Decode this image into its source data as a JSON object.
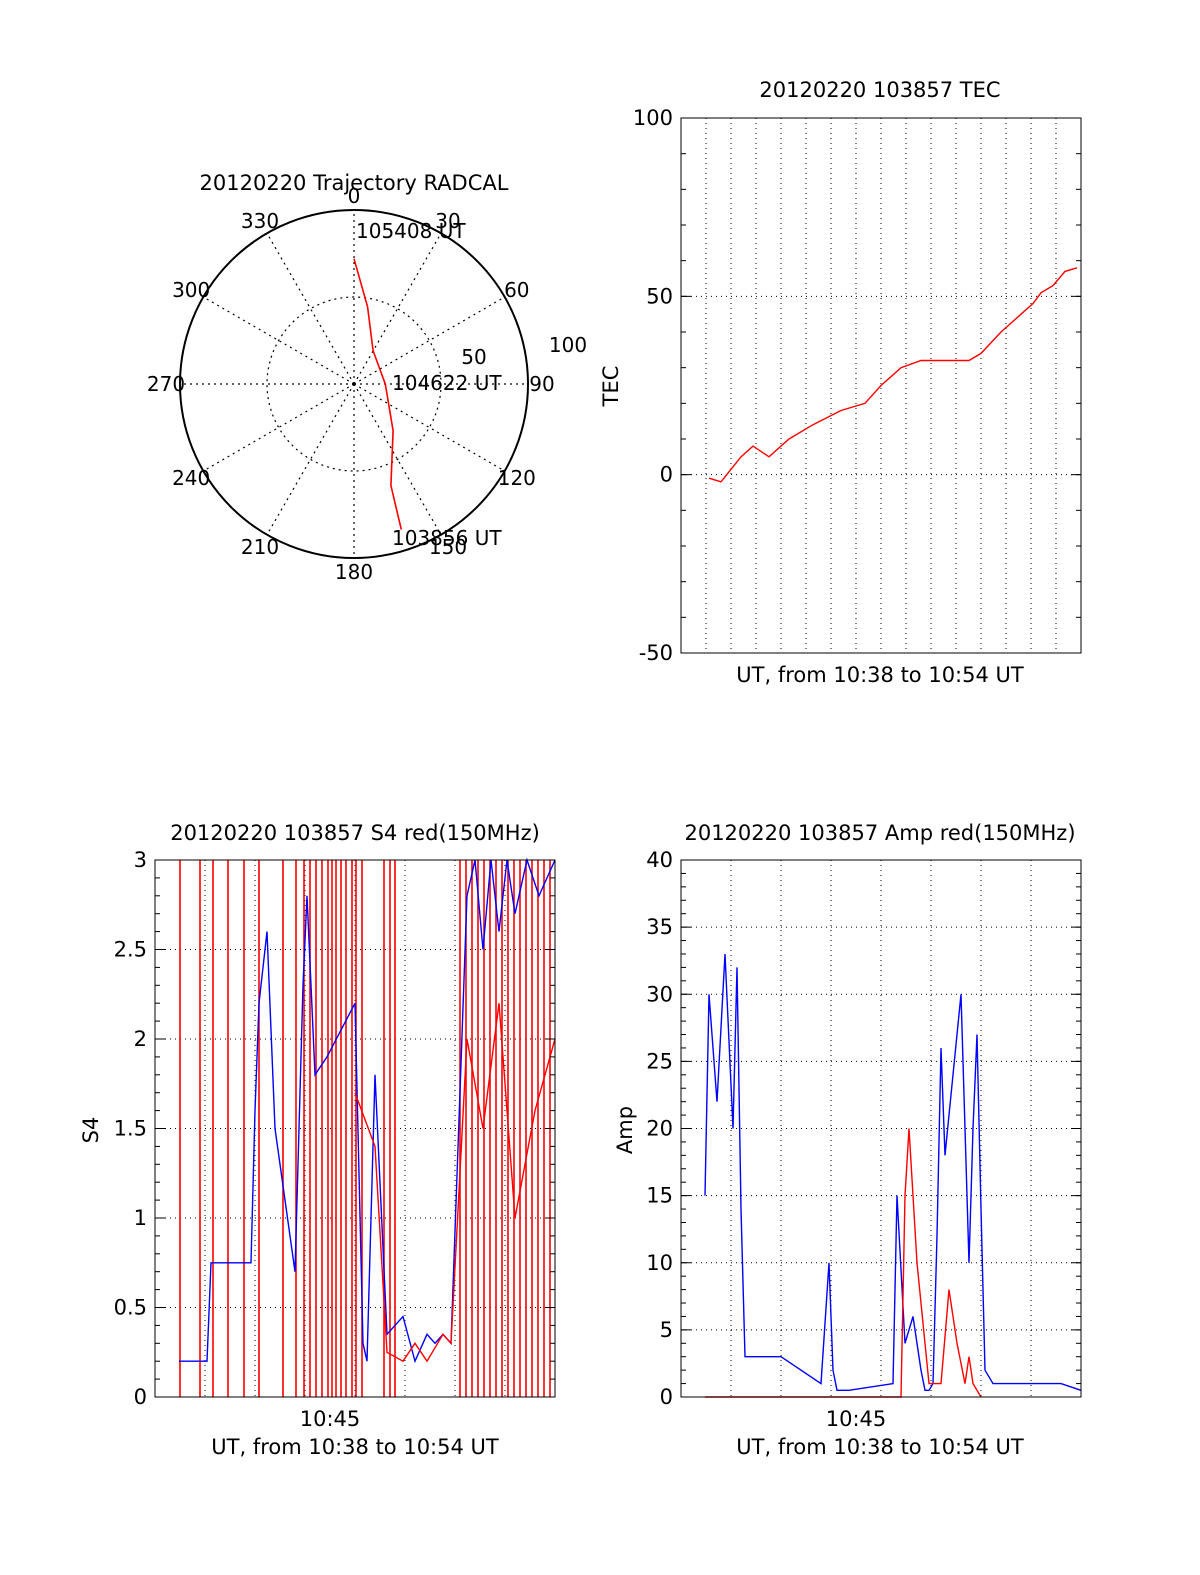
{
  "chart_data": [
    {
      "type": "polar",
      "title": "20120220 Trajectory RADCAL",
      "angle_labels": [
        "0",
        "30",
        "60",
        "90",
        "120",
        "150",
        "180",
        "210",
        "240",
        "270",
        "300",
        "330"
      ],
      "radial_labels": [
        "50",
        "100"
      ],
      "series_color": "#ff0000",
      "trajectory": [
        {
          "az": 0,
          "r": 72
        },
        {
          "az": 10,
          "r": 45
        },
        {
          "az": 30,
          "r": 22
        },
        {
          "az": 90,
          "r": 18
        },
        {
          "az": 140,
          "r": 35
        },
        {
          "az": 160,
          "r": 62
        },
        {
          "az": 162,
          "r": 88
        }
      ],
      "annotations": [
        "105408 UT",
        "104622 UT",
        "103856 UT"
      ]
    },
    {
      "type": "line",
      "title": "20120220 103857 TEC",
      "xlabel": "UT, from 10:38 to 10:54 UT",
      "ylabel": "TEC",
      "ylim": [
        -50,
        100
      ],
      "yticks": [
        "100",
        "50",
        "0",
        "-50"
      ],
      "grid": true,
      "series": [
        {
          "color": "#ff0000",
          "x": [
            0.07,
            0.1,
            0.15,
            0.18,
            0.22,
            0.27,
            0.33,
            0.4,
            0.46,
            0.5,
            0.55,
            0.6,
            0.65,
            0.68,
            0.72,
            0.75,
            0.8,
            0.85,
            0.88,
            0.9,
            0.93,
            0.96,
            0.99
          ],
          "y": [
            -1,
            -2,
            5,
            8,
            5,
            10,
            14,
            18,
            20,
            25,
            30,
            32,
            32,
            32,
            32,
            34,
            40,
            45,
            48,
            51,
            53,
            57,
            58
          ]
        }
      ]
    },
    {
      "type": "line",
      "title": "20120220 103857 S4 red(150MHz)",
      "xlabel": "UT, from 10:38 to 10:54 UT",
      "ylabel": "S4",
      "xtick_label": "10:45",
      "ylim": [
        0,
        3
      ],
      "yticks": [
        "3",
        "2.5",
        "2",
        "1.5",
        "1",
        "0.5",
        "0"
      ],
      "grid": true,
      "series": [
        {
          "color": "#0000ff",
          "x": [
            0.06,
            0.13,
            0.14,
            0.24,
            0.25,
            0.26,
            0.28,
            0.3,
            0.35,
            0.37,
            0.38,
            0.4,
            0.43,
            0.5,
            0.52,
            0.53,
            0.55,
            0.58,
            0.62,
            0.65,
            0.68,
            0.7,
            0.72,
            0.74,
            0.78,
            0.8,
            0.82,
            0.84,
            0.86,
            0.88,
            0.9,
            0.93,
            0.96,
            1.0
          ],
          "y": [
            0.2,
            0.2,
            0.75,
            0.75,
            1.6,
            2.2,
            2.6,
            1.5,
            0.7,
            2.3,
            2.8,
            1.8,
            1.9,
            2.2,
            0.3,
            0.2,
            1.8,
            0.35,
            0.45,
            0.2,
            0.35,
            0.3,
            0.35,
            0.3,
            2.8,
            3.0,
            2.5,
            3.0,
            2.6,
            3.0,
            2.7,
            3.0,
            2.8,
            3.0
          ]
        },
        {
          "color": "#ff0000",
          "x": [
            0.5,
            0.55,
            0.58,
            0.62,
            0.65,
            0.68,
            0.72,
            0.74,
            0.78,
            0.82,
            0.86,
            0.9,
            0.95,
            1.0
          ],
          "y": [
            1.7,
            1.4,
            0.25,
            0.2,
            0.3,
            0.2,
            0.35,
            0.3,
            2.0,
            1.5,
            2.2,
            1.0,
            1.6,
            2.0
          ]
        }
      ]
    },
    {
      "type": "line",
      "title": "20120220 103857 Amp red(150MHz)",
      "xlabel": "UT, from 10:38 to 10:54 UT",
      "ylabel": "Amp",
      "xtick_label": "10:45",
      "ylim": [
        0,
        40
      ],
      "yticks": [
        "40",
        "35",
        "30",
        "25",
        "20",
        "15",
        "10",
        "5",
        "0"
      ],
      "grid": true,
      "series": [
        {
          "color": "#0000ff",
          "x": [
            0.06,
            0.07,
            0.09,
            0.11,
            0.13,
            0.14,
            0.15,
            0.16,
            0.25,
            0.35,
            0.37,
            0.38,
            0.39,
            0.42,
            0.53,
            0.54,
            0.56,
            0.58,
            0.6,
            0.61,
            0.62,
            0.63,
            0.64,
            0.65,
            0.66,
            0.68,
            0.7,
            0.72,
            0.73,
            0.74,
            0.75,
            0.76,
            0.78,
            0.8,
            0.82,
            0.85,
            0.9,
            0.95,
            1.0
          ],
          "y": [
            15,
            30,
            22,
            33,
            20,
            32,
            14,
            3,
            3,
            1,
            10,
            2,
            0.5,
            0.5,
            1,
            15,
            4,
            6,
            2,
            0.5,
            0.5,
            1,
            12,
            26,
            18,
            24,
            30,
            10,
            20,
            27,
            14,
            2,
            1,
            1,
            1,
            1,
            1,
            1,
            0.5
          ]
        },
        {
          "color": "#ff0000",
          "x": [
            0.06,
            0.15,
            0.55,
            0.56,
            0.57,
            0.59,
            0.61,
            0.62,
            0.65,
            0.67,
            0.69,
            0.71,
            0.72,
            0.73,
            0.75
          ],
          "y": [
            0,
            0,
            0,
            15,
            20,
            10,
            4,
            1,
            1,
            8,
            4,
            1,
            3,
            1,
            0
          ]
        }
      ]
    }
  ]
}
